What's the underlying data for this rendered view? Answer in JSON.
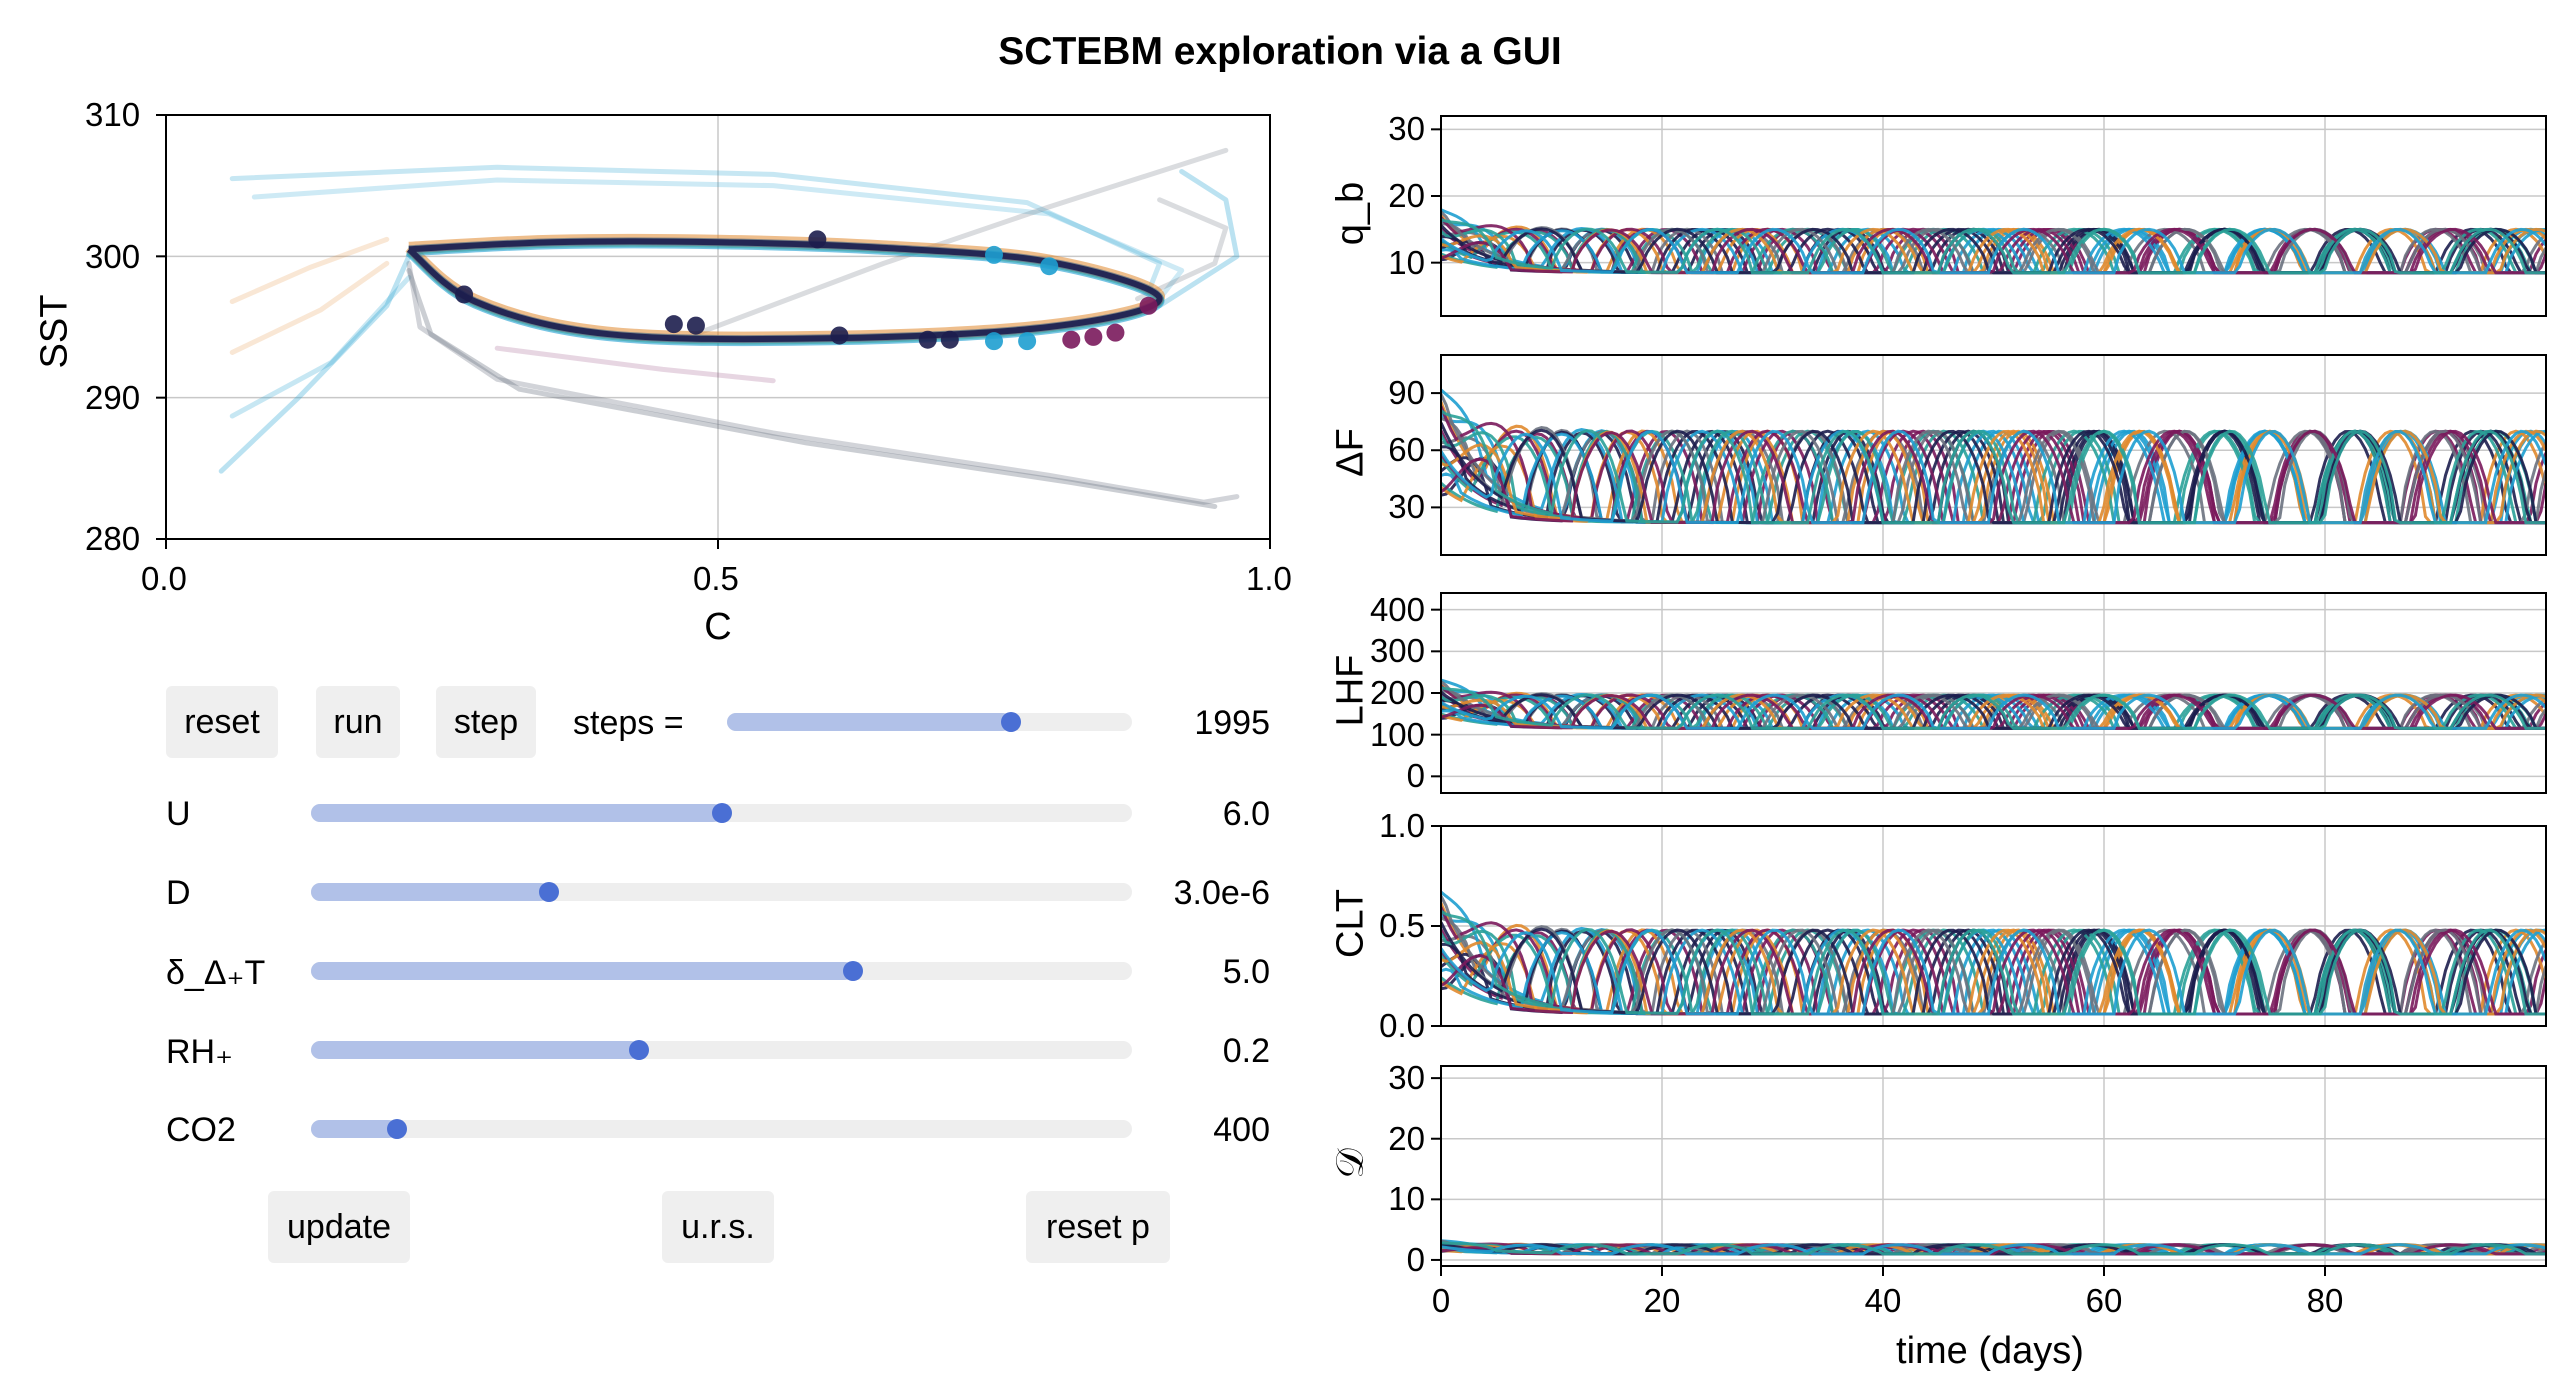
{
  "title": "SCTEBM exploration via a GUI",
  "colors": {
    "navy": "#1d1e4e",
    "slate": "#6b7280",
    "teal": "#2aa198",
    "blue": "#1e9fd0",
    "orange": "#e0892d",
    "magenta": "#7a1a5c",
    "accent": "#4a6fd4",
    "slider_fill": "#b1c1e8"
  },
  "phase": {
    "xlabel": "C",
    "ylabel": "SST",
    "xticks": [
      "0.0",
      "0.5",
      "1.0"
    ],
    "yticks": [
      "280",
      "290",
      "300",
      "310"
    ]
  },
  "timeseries": {
    "xlabel": "time (days)",
    "xticks": [
      "0",
      "20",
      "40",
      "60",
      "80"
    ],
    "panels": [
      {
        "ylabel": "q_b",
        "yticks": [
          "10",
          "20",
          "30"
        ]
      },
      {
        "ylabel": "ΔF",
        "yticks": [
          "30",
          "60",
          "90"
        ]
      },
      {
        "ylabel": "LHF",
        "yticks": [
          "0",
          "100",
          "200",
          "300",
          "400"
        ]
      },
      {
        "ylabel": "CLT",
        "yticks": [
          "0.0",
          "0.5",
          "1.0"
        ]
      },
      {
        "ylabel": "𝒟",
        "yticks": [
          "0",
          "10",
          "20",
          "30"
        ]
      }
    ]
  },
  "controls": {
    "reset_label": "reset",
    "run_label": "run",
    "step_label": "step",
    "steps_label": "steps =",
    "steps_value": "1995",
    "steps_fraction": 0.7,
    "params": [
      {
        "label": "U",
        "value": "6.0",
        "fraction": 0.5
      },
      {
        "label": "D",
        "value": "3.0e-6",
        "fraction": 0.29
      },
      {
        "label": "δ_Δ₊T",
        "value": "5.0",
        "fraction": 0.66
      },
      {
        "label": "RH₊",
        "value": "0.2",
        "fraction": 0.4
      },
      {
        "label": "CO2",
        "value": "400",
        "fraction": 0.105
      }
    ],
    "update_label": "update",
    "urs_label": "u.r.s.",
    "reset_p_label": "reset p"
  },
  "chart_data": [
    {
      "type": "line",
      "title": "",
      "xlabel": "C",
      "ylabel": "SST",
      "xlim": [
        0,
        1
      ],
      "ylim": [
        280,
        310
      ],
      "grid": true,
      "description_series": [
        {
          "x": [
            0.22,
            0.35,
            0.5,
            0.65,
            0.8,
            0.9,
            0.8,
            0.6,
            0.4,
            0.28,
            0.22
          ],
          "y": [
            300.5,
            301,
            301,
            300.6,
            299.6,
            297,
            295,
            294.2,
            294.5,
            296.8,
            300.5
          ]
        }
      ],
      "markers": [
        {
          "x": 0.27,
          "y": 297.3
        },
        {
          "x": 0.46,
          "y": 295.2
        },
        {
          "x": 0.48,
          "y": 295.1
        },
        {
          "x": 0.59,
          "y": 301.2
        },
        {
          "x": 0.61,
          "y": 294.4
        },
        {
          "x": 0.69,
          "y": 294.1
        },
        {
          "x": 0.71,
          "y": 294.1
        },
        {
          "x": 0.75,
          "y": 294
        },
        {
          "x": 0.75,
          "y": 300.1
        },
        {
          "x": 0.78,
          "y": 294
        },
        {
          "x": 0.8,
          "y": 299.3
        },
        {
          "x": 0.82,
          "y": 294.1
        },
        {
          "x": 0.84,
          "y": 294.3
        },
        {
          "x": 0.86,
          "y": 294.6
        },
        {
          "x": 0.89,
          "y": 296.5
        }
      ]
    },
    {
      "type": "line",
      "ylabel": "q_b",
      "xlabel": "",
      "xlim": [
        0,
        100
      ],
      "ylim": [
        2,
        32
      ],
      "base": 8.5,
      "amp": 6.5,
      "period": 12
    },
    {
      "type": "line",
      "ylabel": "ΔF",
      "xlabel": "",
      "xlim": [
        0,
        100
      ],
      "ylim": [
        5,
        110
      ],
      "base": 22,
      "amp": 48,
      "period": 12
    },
    {
      "type": "line",
      "ylabel": "LHF",
      "xlabel": "",
      "xlim": [
        0,
        100
      ],
      "ylim": [
        -40,
        440
      ],
      "base": 115,
      "amp": 80,
      "period": 12
    },
    {
      "type": "line",
      "ylabel": "CLT",
      "xlabel": "",
      "xlim": [
        0,
        100
      ],
      "ylim": [
        0,
        1
      ],
      "base": 0.06,
      "amp": 0.42,
      "period": 12
    },
    {
      "type": "line",
      "ylabel": "𝒟",
      "xlabel": "time (days)",
      "xlim": [
        0,
        100
      ],
      "ylim": [
        -1,
        32
      ],
      "base": 1,
      "amp": 1.5,
      "period": 12
    }
  ]
}
